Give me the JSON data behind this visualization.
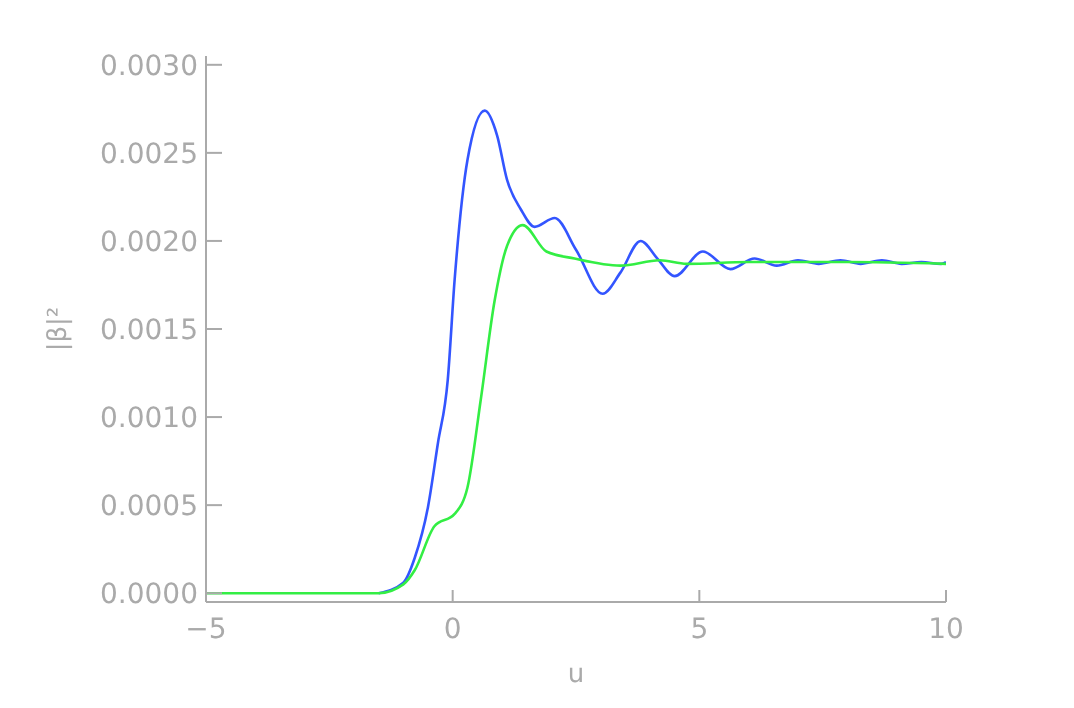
{
  "chart_data": {
    "type": "line",
    "xlabel": "u",
    "ylabel": "|β|²",
    "xlim": [
      -5,
      10
    ],
    "xticks": [
      {
        "value": -5,
        "label": "−5"
      },
      0,
      5,
      10
    ],
    "ylim": [
      -5e-05,
      0.00305
    ],
    "yticks": [
      {
        "value": 0,
        "label": "0.0000"
      },
      {
        "value": 0.0005,
        "label": "0.0005"
      },
      {
        "value": 0.001,
        "label": "0.0010"
      },
      {
        "value": 0.0015,
        "label": "0.0015"
      },
      {
        "value": 0.002,
        "label": "0.0020"
      },
      {
        "value": 0.0025,
        "label": "0.0025"
      },
      {
        "value": 0.003,
        "label": "0.0030"
      }
    ],
    "grid": false,
    "legend": false,
    "marker": "none",
    "line_style": "solid",
    "series": [
      {
        "color": "#3355ff",
        "x": [
          -1.5,
          -1,
          -0.77,
          -0.5,
          -0.3,
          -0.1,
          0.04,
          0.3,
          0.65,
          0.9,
          1.1,
          1.38,
          1.66,
          2.07,
          2.5,
          3.04,
          3.4,
          3.81,
          4.15,
          4.5,
          5.07,
          5.63,
          6.12,
          6.57,
          7.0,
          7.42,
          7.86,
          8.27,
          8.7,
          9.1,
          9.5,
          9.9,
          10
        ],
        "values": [
          0,
          6e-05,
          0.0002,
          0.00049,
          0.00085,
          0.00121,
          0.00178,
          0.00246,
          0.00274,
          0.0026,
          0.00235,
          0.00218,
          0.00208,
          0.00213,
          0.00195,
          0.0017,
          0.00182,
          0.002,
          0.0019,
          0.0018,
          0.00194,
          0.00184,
          0.0019,
          0.00186,
          0.00189,
          0.00187,
          0.00189,
          0.00187,
          0.00189,
          0.00187,
          0.00188,
          0.00187,
          0.00188
        ]
      },
      {
        "color": "#33ee44",
        "x": [
          -5,
          -3,
          -2,
          -1.5,
          -1,
          -0.77,
          -0.37,
          0.04,
          0.3,
          0.57,
          0.85,
          1.1,
          1.42,
          1.9,
          2.47,
          3.4,
          4.2,
          4.74,
          6,
          8,
          10
        ],
        "values": [
          0,
          0,
          0,
          0,
          5e-05,
          0.00013,
          0.00038,
          0.00045,
          0.0006,
          0.0011,
          0.00166,
          0.00197,
          0.00209,
          0.00194,
          0.0019,
          0.00186,
          0.00189,
          0.00187,
          0.00188,
          0.00188,
          0.00187
        ]
      }
    ]
  }
}
